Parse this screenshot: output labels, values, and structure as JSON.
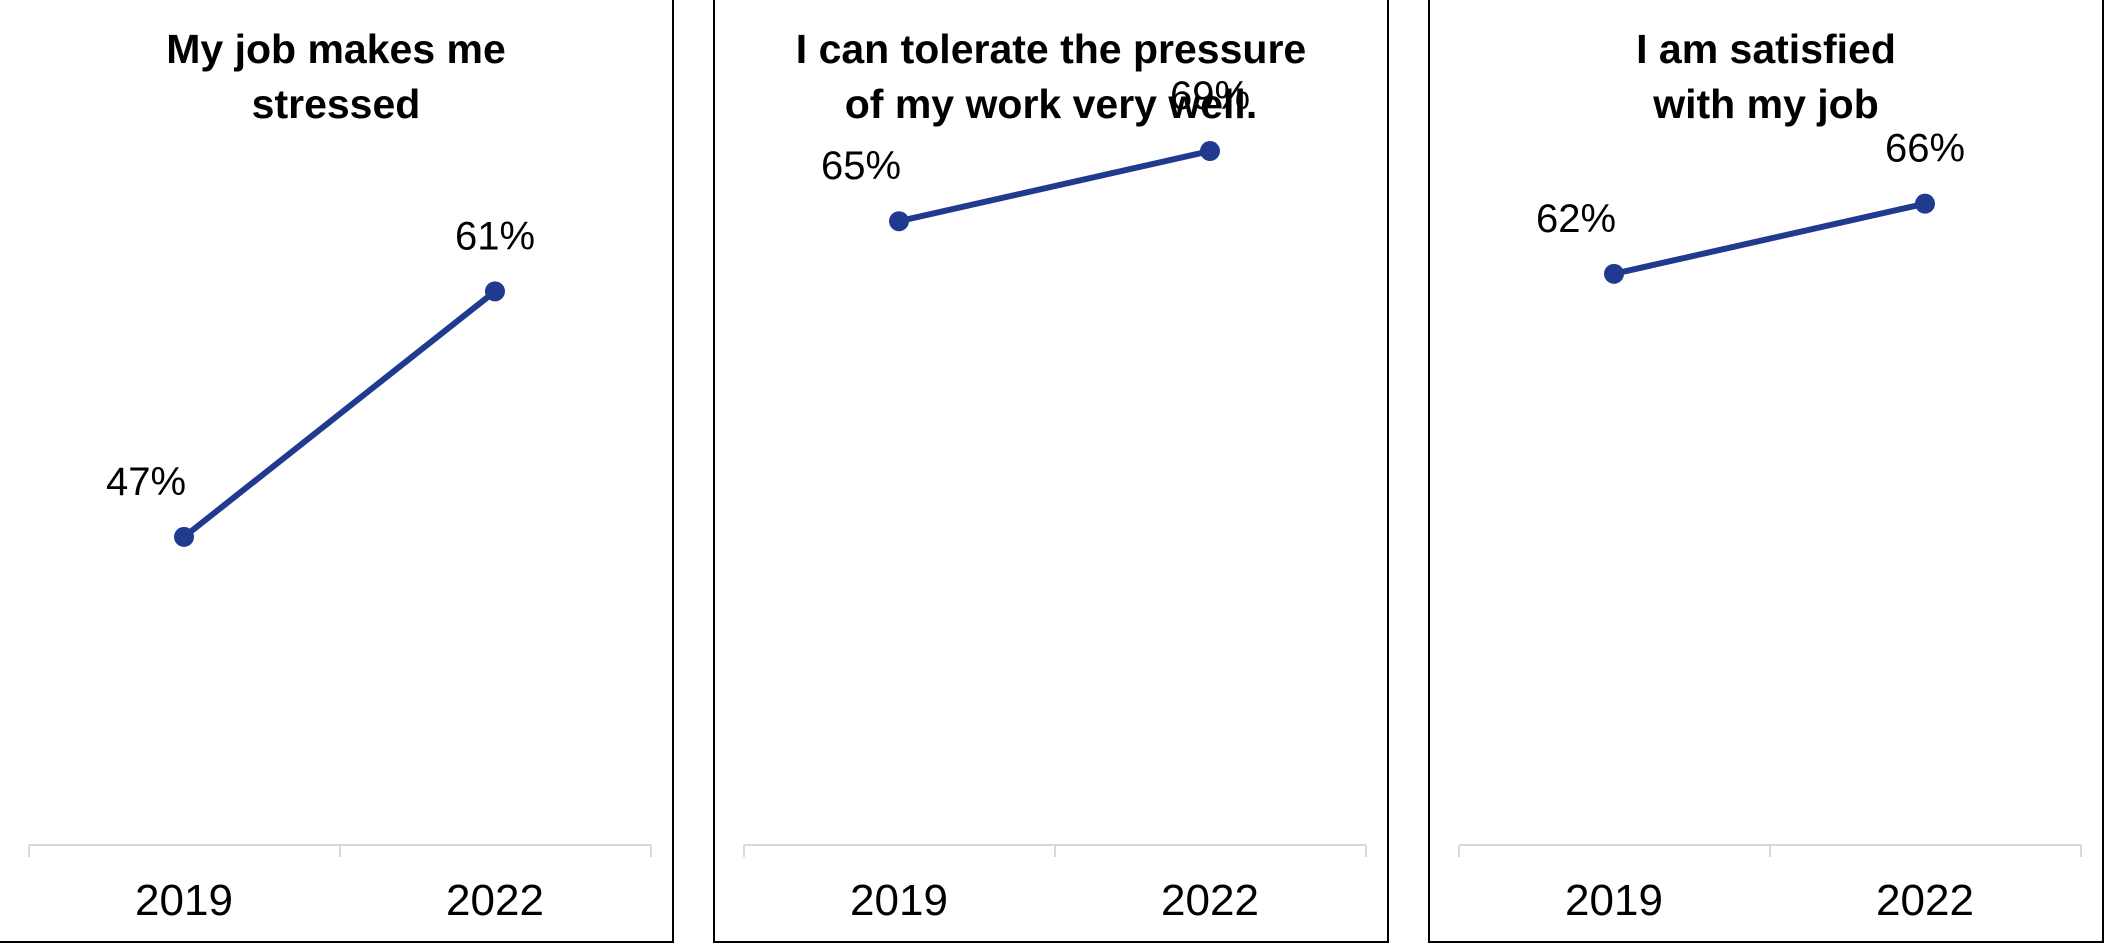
{
  "chart_data": [
    {
      "type": "line",
      "title": "My job makes me stressed",
      "categories": [
        "2019",
        "2022"
      ],
      "values": [
        47,
        61
      ],
      "data_labels": [
        "47%",
        "61%"
      ],
      "ylim": [
        0,
        100
      ],
      "grid": false,
      "color": "#1f3a8f"
    },
    {
      "type": "line",
      "title": "I can tolerate the pressure of my work very well.",
      "categories": [
        "2019",
        "2022"
      ],
      "values": [
        65,
        69
      ],
      "data_labels": [
        "65%",
        "69%"
      ],
      "ylim": [
        0,
        100
      ],
      "grid": false,
      "color": "#1f3a8f"
    },
    {
      "type": "line",
      "title": "I am satisfied with my job",
      "categories": [
        "2019",
        "2022"
      ],
      "values": [
        62,
        66
      ],
      "data_labels": [
        "62%",
        "66%"
      ],
      "ylim": [
        0,
        100
      ],
      "grid": false,
      "color": "#1f3a8f"
    }
  ]
}
